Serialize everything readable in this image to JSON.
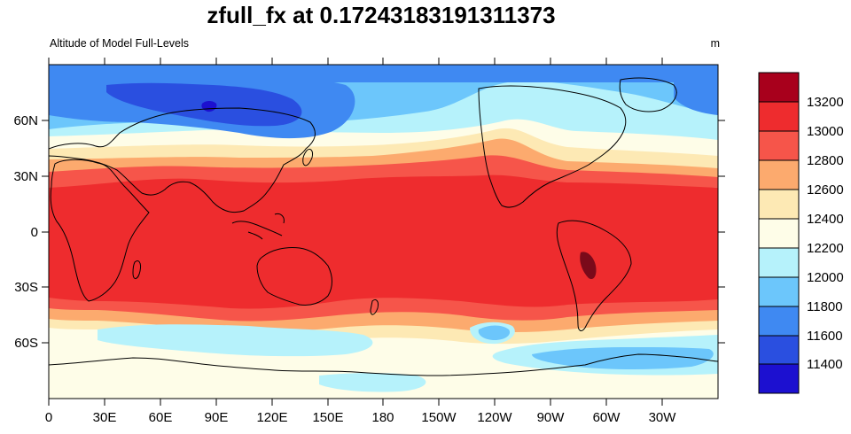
{
  "title": "zfull_fx at 0.17243183191311373",
  "subtitle": "Altitude of Model Full-Levels",
  "units": "m",
  "colors": {
    "c11300": "#1c10d0",
    "c11500": "#2a4fe0",
    "c11700": "#3f89f2",
    "c11900": "#6cc6fb",
    "c12100": "#b6f2fb",
    "c12300": "#fefde8",
    "c12500": "#fde9b4",
    "c12700": "#fcaa6e",
    "c12900": "#f6554a",
    "c13100": "#ee2c2e",
    "c13300": "#a8001c",
    "land": "#000000",
    "dark_spot": "#7a0a1a"
  },
  "map": {
    "projection": "cylindrical equidistant",
    "lon_labels": [
      "0",
      "30E",
      "60E",
      "90E",
      "120E",
      "150E",
      "180",
      "150W",
      "120W",
      "90W",
      "60W",
      "30W"
    ],
    "lat_labels": [
      "60N",
      "30N",
      "0",
      "30S",
      "60S"
    ]
  },
  "colorbar": {
    "labels": [
      "13200",
      "13000",
      "12800",
      "12600",
      "12400",
      "12200",
      "12000",
      "11800",
      "11600",
      "11400"
    ]
  }
}
